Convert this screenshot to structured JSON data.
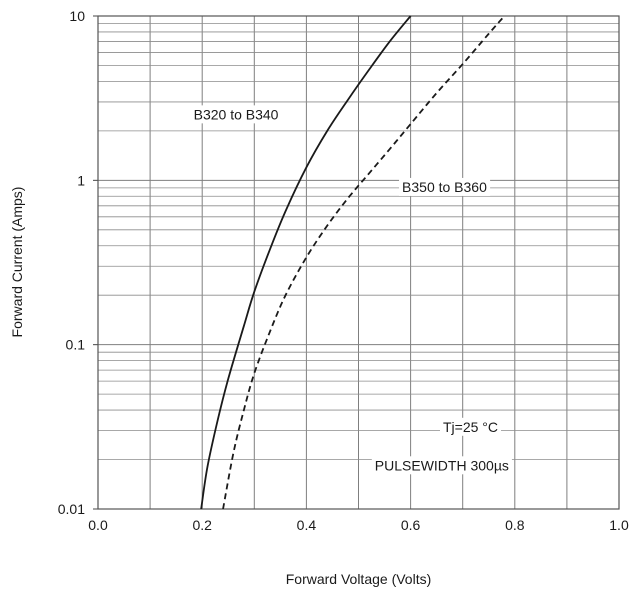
{
  "chart_data": {
    "type": "line",
    "title": "",
    "xlabel": "Forward Voltage (Volts)",
    "ylabel": "Forward Current (Amps)",
    "xlim": [
      0.0,
      1.0
    ],
    "ylim": [
      0.01,
      10
    ],
    "yscale": "log",
    "grid": true,
    "x_ticks": [
      "0.0",
      "0.2",
      "0.4",
      "0.6",
      "0.8",
      "1.0"
    ],
    "y_ticks": [
      "0.01",
      "0.1",
      "1",
      "10"
    ],
    "series": [
      {
        "name": "B320 to B340",
        "style": "solid",
        "color": "#1a1a1a",
        "x": [
          0.198,
          0.21,
          0.23,
          0.25,
          0.28,
          0.3,
          0.33,
          0.36,
          0.4,
          0.44,
          0.48,
          0.52,
          0.56,
          0.6
        ],
        "y": [
          0.01,
          0.018,
          0.035,
          0.062,
          0.13,
          0.21,
          0.38,
          0.65,
          1.2,
          2.0,
          3.1,
          4.7,
          7.0,
          10
        ]
      },
      {
        "name": "B350 to B360",
        "style": "dashed",
        "color": "#1a1a1a",
        "x": [
          0.24,
          0.26,
          0.28,
          0.3,
          0.33,
          0.36,
          0.4,
          0.44,
          0.48,
          0.52,
          0.56,
          0.6,
          0.65,
          0.7,
          0.75,
          0.78
        ],
        "y": [
          0.01,
          0.022,
          0.04,
          0.067,
          0.12,
          0.2,
          0.34,
          0.53,
          0.78,
          1.1,
          1.55,
          2.2,
          3.4,
          5.1,
          7.8,
          10
        ]
      }
    ],
    "annotations": [
      {
        "text": "B320 to B340",
        "x": 0.265,
        "y": 2.35
      },
      {
        "text": "B350 to B360",
        "x": 0.665,
        "y": 0.85
      },
      {
        "text": "Tj=25 °C",
        "x": 0.715,
        "y": 0.0295
      },
      {
        "text": "PULSEWIDTH 300µs",
        "x": 0.66,
        "y": 0.0172
      }
    ]
  }
}
